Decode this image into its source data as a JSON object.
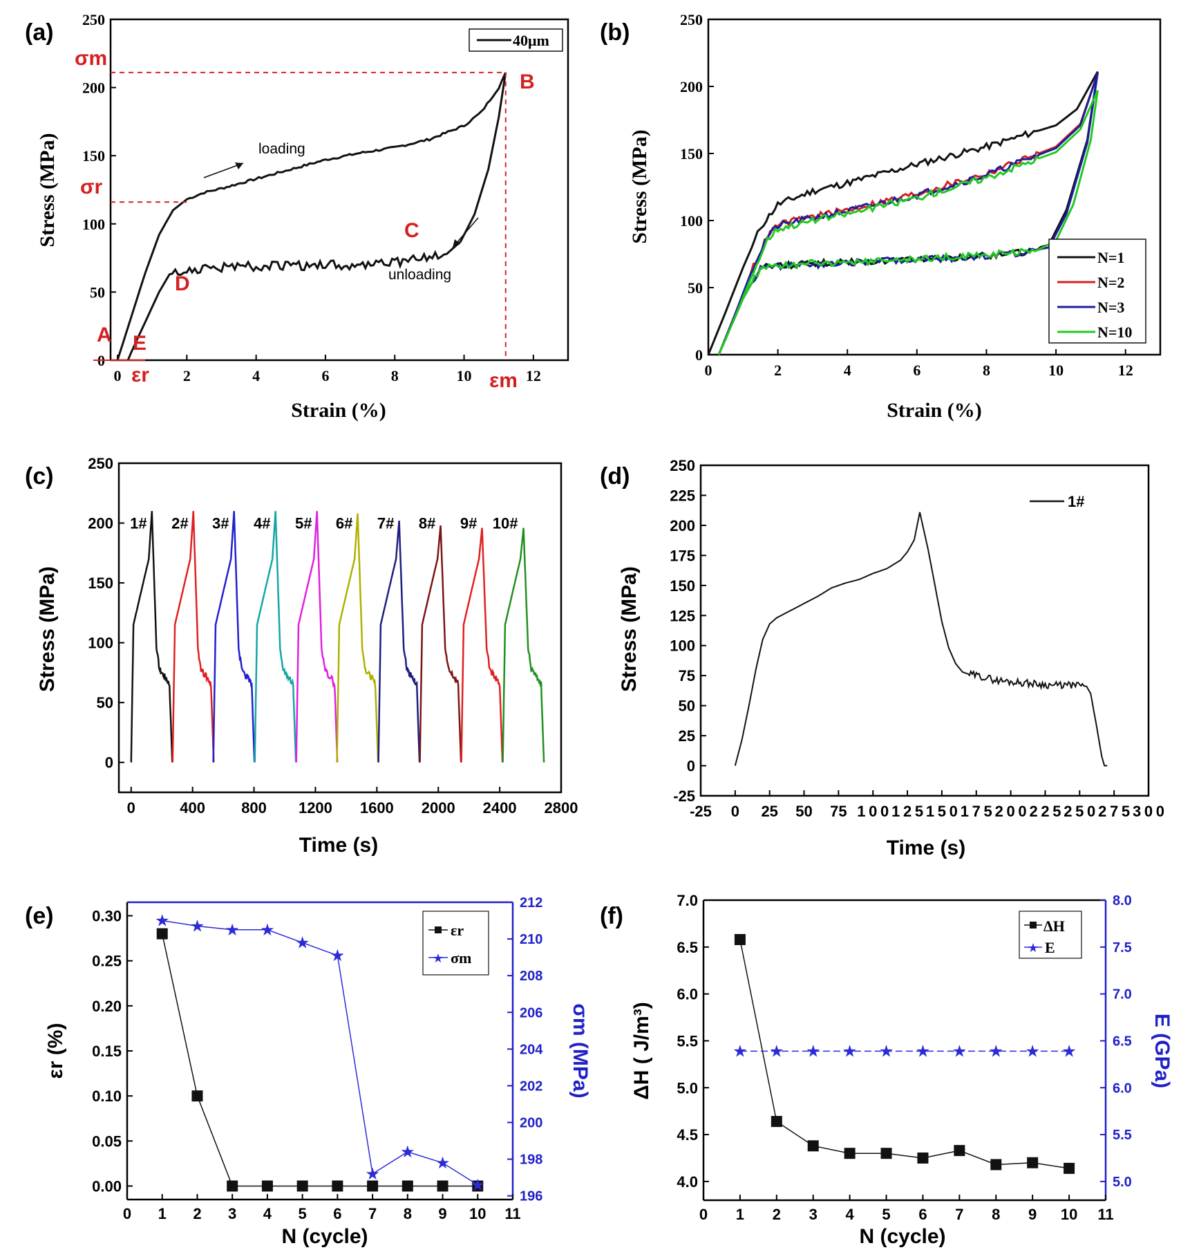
{
  "colors": {
    "black": "#111111",
    "red": "#d42020",
    "blue": "#1d1d9c",
    "green": "#22c822",
    "axis_blue": "#2020c8",
    "marker_blue": "#2b2bd8"
  },
  "chart_data": [
    {
      "id": "a",
      "panel_label": "(a)",
      "type": "line",
      "xlabel": "Strain (%)",
      "ylabel": "Stress (MPa)",
      "xlim": [
        -0.2,
        13
      ],
      "ylim": [
        0,
        250
      ],
      "x_ticks": [
        "0",
        "2",
        "4",
        "6",
        "8",
        "10",
        "12"
      ],
      "y_ticks": [
        "0",
        "50",
        "100",
        "150",
        "200",
        "250"
      ],
      "legend": "40μm",
      "annotations": {
        "A": "A",
        "B": "B",
        "C": "C",
        "D": "D",
        "E": "E",
        "loading": "loading",
        "unloading": "unloading",
        "sigma_m": "σm",
        "sigma_r": "σr",
        "eps_m": "εm",
        "eps_r": "εr"
      },
      "reference_values": {
        "sigma_m": 211,
        "sigma_r": 116,
        "eps_m": 11.2,
        "eps_r": 0.3
      },
      "series": [
        {
          "name": "loading",
          "x": [
            0,
            0.4,
            0.8,
            1.2,
            1.6,
            2.0,
            2.5,
            3,
            4,
            5,
            6,
            7,
            8,
            9,
            10,
            10.5,
            11,
            11.2
          ],
          "y": [
            0,
            32,
            64,
            92,
            110,
            118,
            123,
            126,
            133,
            140,
            147,
            152,
            156,
            162,
            172,
            182,
            200,
            211
          ]
        },
        {
          "name": "unloading",
          "x": [
            11.2,
            11.0,
            10.7,
            10.3,
            9.9,
            9.5,
            9.0,
            8.0,
            7.0,
            6.0,
            5.0,
            4.0,
            3.0,
            2.0,
            1.5,
            1.2,
            0.8,
            0.4,
            0.3
          ],
          "y": [
            211,
            178,
            140,
            107,
            87,
            78,
            75,
            72,
            70,
            70,
            69,
            69,
            68,
            66,
            63,
            50,
            28,
            6,
            0
          ]
        }
      ]
    },
    {
      "id": "b",
      "panel_label": "(b)",
      "type": "line",
      "xlabel": "Strain (%)",
      "ylabel": "Stress (MPa)",
      "xlim": [
        0,
        13
      ],
      "ylim": [
        0,
        250
      ],
      "x_ticks": [
        "0",
        "2",
        "4",
        "6",
        "8",
        "10",
        "12"
      ],
      "y_ticks": [
        "0",
        "50",
        "100",
        "150",
        "200",
        "250"
      ],
      "series": [
        {
          "name": "N=1",
          "color": "#111111",
          "x": [
            0,
            0.5,
            1,
            1.5,
            2,
            3,
            4,
            6,
            8,
            10,
            10.6,
            11.2,
            10.9,
            10.3,
            9.8,
            9.0,
            7,
            5,
            3,
            2,
            1.5,
            1.0,
            0.5,
            0.3
          ],
          "y": [
            0,
            32,
            65,
            95,
            112,
            122,
            128,
            142,
            155,
            171,
            183,
            211,
            160,
            108,
            82,
            76,
            72,
            70,
            68,
            66,
            65,
            42,
            12,
            0
          ]
        },
        {
          "name": "N=2",
          "color": "#d42020",
          "x": [
            0.3,
            0.8,
            1.3,
            1.7,
            2,
            3,
            4,
            6,
            8,
            10,
            10.7,
            11.2
          ],
          "y": [
            0,
            32,
            66,
            88,
            97,
            103,
            108,
            120,
            135,
            155,
            172,
            210
          ]
        },
        {
          "name": "N=3",
          "color": "#1d1d9c",
          "x": [
            0.3,
            0.8,
            1.3,
            1.7,
            2,
            3,
            4,
            6,
            8,
            10,
            10.7,
            11.2,
            10.9,
            10.3,
            9.8,
            9.0,
            7,
            5,
            3,
            2,
            1.5,
            1.0,
            0.5,
            0.3
          ],
          "y": [
            0,
            32,
            66,
            88,
            96,
            102,
            107,
            119,
            134,
            154,
            171,
            210,
            158,
            105,
            80,
            76,
            72,
            70,
            67,
            66,
            65,
            42,
            12,
            0
          ]
        },
        {
          "name": "N=10",
          "color": "#22c822",
          "x": [
            0.3,
            0.8,
            1.3,
            1.7,
            2,
            3,
            4,
            6,
            8,
            10,
            10.7,
            11.2,
            11.0,
            10.5,
            10.0,
            9.4,
            7,
            5,
            3,
            2,
            1.5,
            1.0,
            0.5,
            0.3
          ],
          "y": [
            0,
            30,
            62,
            86,
            94,
            100,
            105,
            117,
            132,
            151,
            168,
            197,
            160,
            112,
            85,
            77,
            73,
            70,
            68,
            66,
            65,
            42,
            12,
            0
          ]
        }
      ]
    },
    {
      "id": "c",
      "panel_label": "(c)",
      "type": "line",
      "xlabel": "Time (s)",
      "ylabel": "Stress (MPa)",
      "xlim": [
        -80,
        2800
      ],
      "ylim": [
        -25,
        250
      ],
      "x_ticks": [
        "0",
        "400",
        "800",
        "1200",
        "1600",
        "2000",
        "2400",
        "2800"
      ],
      "y_ticks": [
        "0",
        "50",
        "100",
        "150",
        "200",
        "250"
      ],
      "cycles": [
        {
          "label": "1#",
          "start": 0,
          "peak": 210,
          "color": "#111111"
        },
        {
          "label": "2#",
          "start": 270,
          "peak": 210,
          "color": "#e02020"
        },
        {
          "label": "3#",
          "start": 535,
          "peak": 210,
          "color": "#2020d0"
        },
        {
          "label": "4#",
          "start": 805,
          "peak": 210,
          "color": "#15a5a5"
        },
        {
          "label": "5#",
          "start": 1075,
          "peak": 210,
          "color": "#e020e0"
        },
        {
          "label": "6#",
          "start": 1340,
          "peak": 208,
          "color": "#b0b000"
        },
        {
          "label": "7#",
          "start": 1610,
          "peak": 202,
          "color": "#1d1d80"
        },
        {
          "label": "8#",
          "start": 1880,
          "peak": 198,
          "color": "#7a1515"
        },
        {
          "label": "9#",
          "start": 2150,
          "peak": 196,
          "color": "#e02020"
        },
        {
          "label": "10#",
          "start": 2420,
          "peak": 196,
          "color": "#209020"
        }
      ],
      "cycle_shape": {
        "t": [
          0,
          15,
          60,
          115,
          135,
          165,
          185,
          205,
          230,
          250,
          268
        ],
        "s": [
          0,
          115,
          140,
          170,
          210,
          95,
          78,
          74,
          70,
          65,
          0
        ]
      }
    },
    {
      "id": "d",
      "panel_label": "(d)",
      "type": "line",
      "xlabel": "Time (s)",
      "ylabel": "Stress (MPa)",
      "xlim": [
        -25,
        300
      ],
      "ylim": [
        -25,
        250
      ],
      "x_ticks": [
        "-25",
        "0",
        "25",
        "50",
        "75",
        "100",
        "125",
        "150",
        "175",
        "200",
        "225",
        "250",
        "275",
        "300"
      ],
      "y_ticks": [
        "-25",
        "0",
        "25",
        "50",
        "75",
        "100",
        "125",
        "150",
        "175",
        "200",
        "225",
        "250"
      ],
      "legend": "1#",
      "series": [
        {
          "name": "1#",
          "x": [
            0,
            5,
            10,
            15,
            20,
            25,
            30,
            40,
            50,
            60,
            70,
            80,
            90,
            100,
            110,
            120,
            125,
            130,
            134,
            140,
            145,
            150,
            155,
            160,
            165,
            170,
            175,
            180,
            190,
            200,
            210,
            220,
            230,
            240,
            250,
            255,
            258,
            262,
            266,
            268,
            270
          ],
          "y": [
            0,
            22,
            50,
            80,
            105,
            118,
            123,
            129,
            135,
            141,
            148,
            152,
            155,
            160,
            164,
            171,
            178,
            188,
            211,
            180,
            150,
            120,
            98,
            85,
            78,
            76,
            75,
            74,
            71,
            70,
            69,
            68,
            67,
            67,
            67,
            66,
            60,
            35,
            8,
            0,
            0
          ]
        }
      ]
    },
    {
      "id": "e",
      "panel_label": "(e)",
      "type": "line",
      "xlabel": "N (cycle)",
      "ylabel": "εr (%)",
      "y2label": "σm (MPa)",
      "xlim": [
        0,
        11
      ],
      "ylim": [
        -0.015,
        0.315
      ],
      "y2lim": [
        195.8,
        212
      ],
      "x_ticks": [
        "0",
        "1",
        "2",
        "3",
        "4",
        "5",
        "6",
        "7",
        "8",
        "9",
        "10",
        "11"
      ],
      "y_ticks": [
        "0.00",
        "0.05",
        "0.10",
        "0.15",
        "0.20",
        "0.25",
        "0.30"
      ],
      "y2_ticks": [
        "196",
        "198",
        "200",
        "202",
        "204",
        "206",
        "208",
        "210",
        "212"
      ],
      "series": [
        {
          "name": "εr",
          "axis": "left",
          "x": [
            1,
            2,
            3,
            4,
            5,
            6,
            7,
            8,
            9,
            10
          ],
          "values": [
            0.28,
            0.1,
            0.0,
            0.0,
            0.0,
            0.0,
            0.0,
            0.0,
            0.0,
            0.0
          ]
        },
        {
          "name": "σm",
          "axis": "right",
          "x": [
            1,
            2,
            3,
            4,
            5,
            6,
            7,
            8,
            9,
            10
          ],
          "values": [
            211.0,
            210.7,
            210.5,
            210.5,
            209.8,
            209.1,
            197.2,
            198.4,
            197.8,
            196.6
          ]
        }
      ]
    },
    {
      "id": "f",
      "panel_label": "(f)",
      "type": "line",
      "xlabel": "N (cycle)",
      "ylabel": "ΔH ( J/m³)",
      "y2label": "E (GPa)",
      "xlim": [
        0,
        11
      ],
      "ylim": [
        3.8,
        7.0
      ],
      "y2lim": [
        4.8,
        8.0
      ],
      "x_ticks": [
        "0",
        "1",
        "2",
        "3",
        "4",
        "5",
        "6",
        "7",
        "8",
        "9",
        "10",
        "11"
      ],
      "y_ticks": [
        "4.0",
        "4.5",
        "5.0",
        "5.5",
        "6.0",
        "6.5",
        "7.0"
      ],
      "y2_ticks": [
        "5.0",
        "5.5",
        "6.0",
        "6.5",
        "7.0",
        "7.5",
        "8.0"
      ],
      "series": [
        {
          "name": "ΔH",
          "axis": "left",
          "x": [
            1,
            2,
            3,
            4,
            5,
            6,
            7,
            8,
            9,
            10
          ],
          "values": [
            6.58,
            4.64,
            4.38,
            4.3,
            4.3,
            4.25,
            4.33,
            4.18,
            4.2,
            4.14
          ]
        },
        {
          "name": "E",
          "axis": "right",
          "x": [
            1,
            2,
            3,
            4,
            5,
            6,
            7,
            8,
            9,
            10
          ],
          "values": [
            6.39,
            6.39,
            6.39,
            6.39,
            6.39,
            6.39,
            6.39,
            6.39,
            6.39,
            6.39
          ]
        }
      ]
    }
  ]
}
